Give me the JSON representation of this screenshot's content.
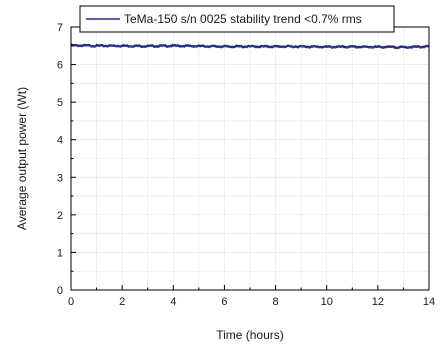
{
  "chart_data": {
    "type": "line",
    "title": "",
    "xlabel": "Time (hours)",
    "ylabel": "Average output power (Wt)",
    "xlim": [
      0,
      14
    ],
    "ylim": [
      0,
      7
    ],
    "x_ticks": [
      0,
      2,
      4,
      6,
      8,
      10,
      12,
      14
    ],
    "y_ticks": [
      0,
      1,
      2,
      3,
      4,
      5,
      6,
      7
    ],
    "grid": true,
    "legend_position": "top",
    "colors": {
      "series": "#1f2a80",
      "grid": "#e4e4e4",
      "axis": "#000000"
    },
    "series": [
      {
        "name": "TeMa-150 s/n 0025 stability trend <0.7% rms",
        "x": [
          0,
          1,
          2,
          3,
          4,
          5,
          6,
          7,
          8,
          9,
          10,
          11,
          12,
          13,
          14
        ],
        "y": [
          6.52,
          6.51,
          6.51,
          6.5,
          6.51,
          6.5,
          6.49,
          6.49,
          6.49,
          6.49,
          6.48,
          6.48,
          6.48,
          6.47,
          6.49
        ]
      }
    ]
  }
}
